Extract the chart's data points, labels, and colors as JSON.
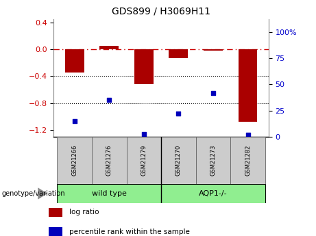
{
  "title": "GDS899 / H3069H11",
  "samples": [
    "GSM21266",
    "GSM21276",
    "GSM21279",
    "GSM21270",
    "GSM21273",
    "GSM21282"
  ],
  "log_ratio": [
    -0.35,
    0.05,
    -0.52,
    -0.13,
    -0.02,
    -1.08
  ],
  "percentile_rank": [
    15,
    35,
    3,
    22,
    42,
    2
  ],
  "ylim_left": [
    -1.3,
    0.45
  ],
  "ylim_right": [
    0,
    112.5
  ],
  "yticks_left": [
    0.4,
    0.0,
    -0.4,
    -0.8,
    -1.2
  ],
  "yticks_right": [
    100,
    75,
    50,
    25,
    0
  ],
  "groups": [
    {
      "label": "wild type",
      "indices": [
        0,
        1,
        2
      ],
      "color": "#90ee90"
    },
    {
      "label": "AQP1-/-",
      "indices": [
        3,
        4,
        5
      ],
      "color": "#90ee90"
    }
  ],
  "bar_color": "#aa0000",
  "dot_color": "#0000bb",
  "hline_color": "#cc0000",
  "hline_style": "-.",
  "dotline_color": "#000000",
  "dotline_style": ":",
  "bar_width": 0.55,
  "dot_size": 22,
  "group_label": "genotype/variation",
  "legend_log_ratio": "log ratio",
  "legend_pct": "percentile rank within the sample",
  "background_color": "#ffffff",
  "plot_bg_color": "#ffffff",
  "tick_label_color_left": "#cc0000",
  "tick_label_color_right": "#0000cc",
  "sample_box_color": "#cccccc",
  "sample_box_edge": "#666666",
  "group_sep_color": "#444444"
}
